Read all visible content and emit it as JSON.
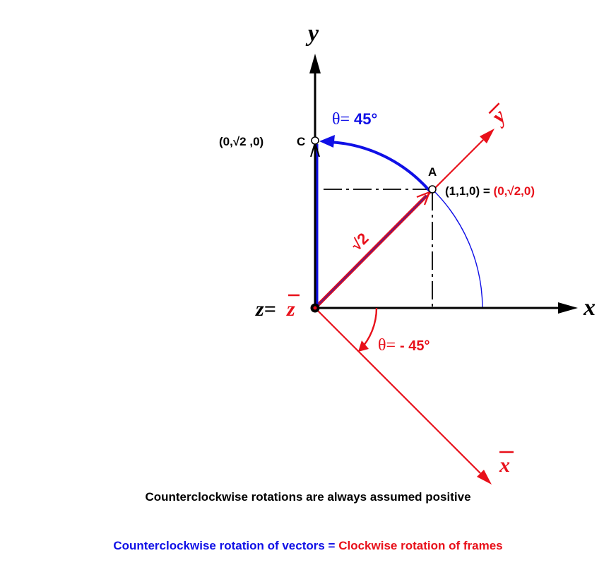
{
  "axes": {
    "y_label": "y",
    "x_label": "x",
    "z_prefix": "z=",
    "z_bar_label": "z",
    "x_bar_label": "x",
    "y_bar_label": "y"
  },
  "angles": {
    "vector_theta": "θ",
    "vector_eq": "= ",
    "vector_value": "45°",
    "frame_theta": "θ",
    "frame_eq": "= ",
    "frame_value": "- 45°"
  },
  "points": {
    "a_label": "A",
    "c_label": "C",
    "c_coords": "(0,√2 ,0)",
    "a_coords_black": "(1,1,0) =",
    "a_coords_red": "(0,√2,0)",
    "length_label": "√2"
  },
  "captions": {
    "line1": "Counterclockwise rotations are always assumed positive",
    "line2_blue": "Counterclockwise rotation of vectors =",
    "line2_red": "Clockwise rotation of frames"
  },
  "colors": {
    "blue": "#1010e6",
    "red": "#e8101a",
    "black": "#000000",
    "dark_red": "#8a1050"
  }
}
